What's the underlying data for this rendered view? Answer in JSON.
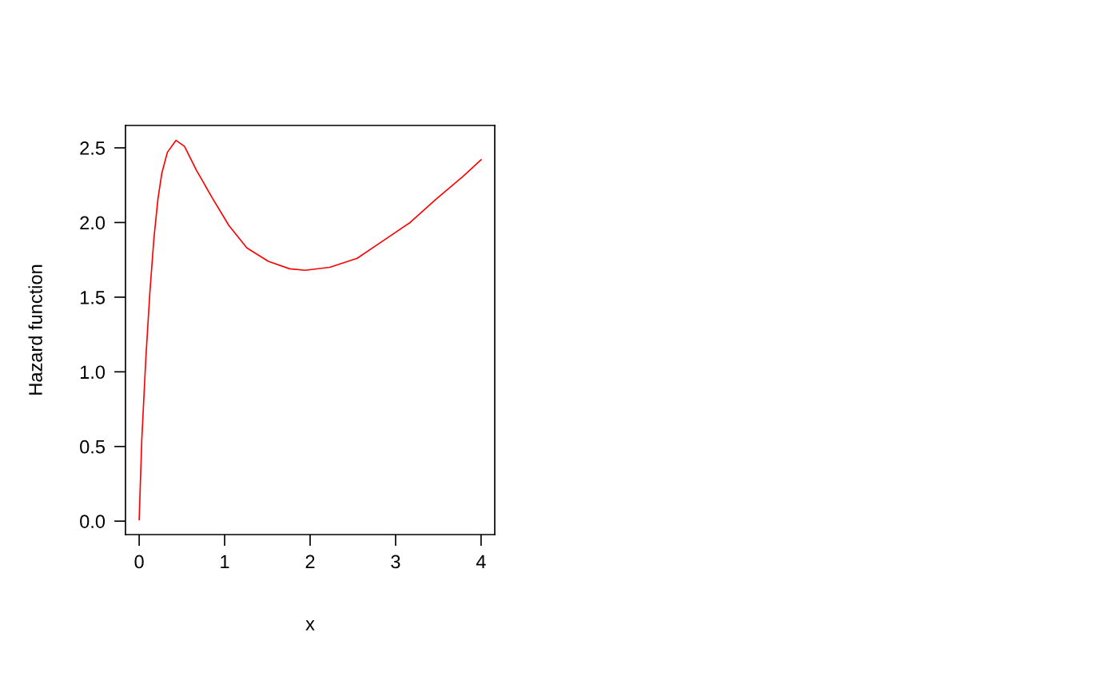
{
  "chart_data": {
    "type": "line",
    "xlabel": "x",
    "ylabel": "Hazard function",
    "x": [
      0,
      0.031,
      0.078,
      0.125,
      0.172,
      0.22,
      0.265,
      0.33,
      0.43,
      0.53,
      0.67,
      0.86,
      1.05,
      1.26,
      1.51,
      1.76,
      1.94,
      2.23,
      2.55,
      2.86,
      3.17,
      3.48,
      3.79,
      4.0
    ],
    "series": [
      {
        "color": "#ff0000",
        "values": [
          0.01,
          0.55,
          1.09,
          1.53,
          1.89,
          2.16,
          2.33,
          2.47,
          2.55,
          2.51,
          2.35,
          2.16,
          1.98,
          1.83,
          1.74,
          1.69,
          1.68,
          1.7,
          1.76,
          1.88,
          2.0,
          2.16,
          2.31,
          2.42
        ]
      }
    ],
    "xlim": [
      -0.16,
      4.16
    ],
    "ylim": [
      -0.09,
      2.65
    ],
    "xticks": [
      0,
      1,
      2,
      3,
      4
    ],
    "yticks": [
      {
        "value": 0,
        "label": "0.0"
      },
      {
        "value": 0.5,
        "label": "0.5"
      },
      {
        "value": 1,
        "label": "1.0"
      },
      {
        "value": 1.5,
        "label": "1.5"
      },
      {
        "value": 2,
        "label": "2.0"
      },
      {
        "value": 2.5,
        "label": "2.5"
      }
    ],
    "grid": false,
    "marker": "none",
    "line_style": "solid"
  }
}
